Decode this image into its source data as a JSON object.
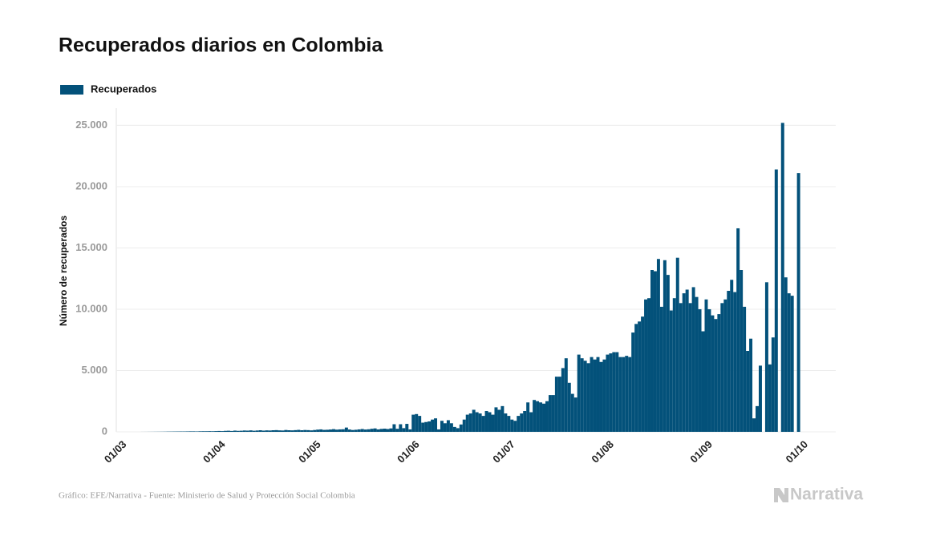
{
  "chart_data": {
    "type": "bar",
    "title": "Recuperados diarios en Colombia",
    "y_label": "Número de recuperados",
    "source": "Gráfico: EFE/Narrativa - Fuente: Ministerio de Salud y Protección Social Colombia",
    "logo": "Narrativa",
    "categories": [
      "01/03",
      null,
      null,
      null,
      null,
      null,
      null,
      null,
      null,
      null,
      null,
      null,
      null,
      null,
      null,
      null,
      null,
      null,
      null,
      null,
      null,
      null,
      null,
      null,
      null,
      null,
      null,
      null,
      null,
      null,
      null,
      "01/04",
      null,
      null,
      null,
      null,
      null,
      null,
      null,
      null,
      null,
      null,
      null,
      null,
      null,
      null,
      null,
      null,
      null,
      null,
      null,
      null,
      null,
      null,
      null,
      null,
      null,
      null,
      null,
      null,
      null,
      "01/05",
      null,
      null,
      null,
      null,
      null,
      null,
      null,
      null,
      null,
      null,
      null,
      null,
      null,
      null,
      null,
      null,
      null,
      null,
      null,
      null,
      null,
      null,
      null,
      null,
      null,
      null,
      null,
      null,
      null,
      null,
      "01/06",
      null,
      null,
      null,
      null,
      null,
      null,
      null,
      null,
      null,
      null,
      null,
      null,
      null,
      null,
      null,
      null,
      null,
      null,
      null,
      null,
      null,
      null,
      null,
      null,
      null,
      null,
      null,
      null,
      null,
      "01/07",
      null,
      null,
      null,
      null,
      null,
      null,
      null,
      null,
      null,
      null,
      null,
      null,
      null,
      null,
      null,
      null,
      null,
      null,
      null,
      null,
      null,
      null,
      null,
      null,
      null,
      null,
      null,
      null,
      null,
      null,
      "01/08",
      null,
      null,
      null,
      null,
      null,
      null,
      null,
      null,
      null,
      null,
      null,
      null,
      null,
      null,
      null,
      null,
      null,
      null,
      null,
      null,
      null,
      null,
      null,
      null,
      null,
      null,
      null,
      null,
      null,
      null,
      "01/09",
      null,
      null,
      null,
      null,
      null,
      null,
      null,
      null,
      null,
      null,
      null,
      null,
      null,
      null,
      null,
      null,
      null,
      null,
      null,
      null,
      null,
      null,
      null,
      null,
      null,
      null,
      null,
      null,
      null,
      "01/10"
    ],
    "series": [
      {
        "name": "Recuperados",
        "color": "#03517a",
        "values": [
          0,
          0,
          0,
          0,
          0,
          0,
          0,
          2,
          3,
          5,
          6,
          8,
          10,
          12,
          15,
          20,
          22,
          25,
          28,
          30,
          30,
          35,
          40,
          40,
          35,
          45,
          50,
          50,
          55,
          50,
          60,
          70,
          60,
          80,
          90,
          70,
          100,
          80,
          90,
          110,
          100,
          120,
          90,
          110,
          130,
          100,
          120,
          110,
          130,
          140,
          120,
          110,
          150,
          130,
          120,
          140,
          160,
          130,
          150,
          140,
          120,
          150,
          180,
          200,
          160,
          170,
          190,
          220,
          180,
          200,
          210,
          350,
          190,
          150,
          170,
          200,
          230,
          190,
          210,
          250,
          280,
          200,
          240,
          260,
          230,
          280,
          620,
          250,
          620,
          300,
          650,
          200,
          1400,
          1450,
          1300,
          750,
          800,
          850,
          1000,
          1100,
          200,
          900,
          700,
          950,
          700,
          400,
          300,
          600,
          1000,
          1400,
          1500,
          1800,
          1600,
          1500,
          1300,
          1700,
          1600,
          1400,
          2000,
          1800,
          2100,
          1500,
          1300,
          1000,
          900,
          1300,
          1500,
          1700,
          2400,
          1600,
          2600,
          2500,
          2400,
          2300,
          2500,
          3000,
          3000,
          4500,
          4500,
          5200,
          6000,
          4000,
          3100,
          2800,
          6300,
          6000,
          5800,
          5600,
          6100,
          5900,
          6100,
          5700,
          5900,
          6300,
          6400,
          6500,
          6500,
          6100,
          6100,
          6200,
          6100,
          8100,
          8800,
          9000,
          9400,
          10800,
          10900,
          13200,
          13100,
          14100,
          10200,
          14000,
          12800,
          9900,
          10900,
          14200,
          10500,
          11300,
          11600,
          10500,
          11800,
          11000,
          10000,
          8200,
          10800,
          10000,
          9500,
          9200,
          9600,
          10500,
          10800,
          11500,
          12400,
          11400,
          16600,
          13200,
          10200,
          6600,
          7600,
          1100,
          2100,
          5400,
          0,
          12200,
          5500,
          7700,
          21400,
          0,
          25200,
          12600,
          11300,
          11100,
          0,
          21100,
          null
        ]
      }
    ],
    "ylim": [
      0,
      26400
    ],
    "yticks": [
      0,
      {
        "value": 5000,
        "label": "5.000"
      },
      {
        "value": 10000,
        "label": "10.000"
      },
      {
        "value": 15000,
        "label": "15.000"
      },
      {
        "value": 20000,
        "label": "20.000"
      },
      {
        "value": 25000,
        "label": "25.000"
      }
    ],
    "grid": true,
    "legend": "top-left"
  }
}
